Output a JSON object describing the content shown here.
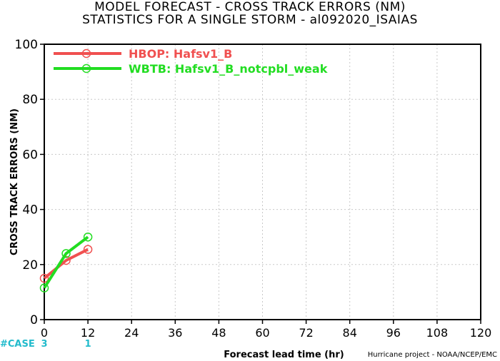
{
  "chart_data": {
    "type": "line",
    "title": "MODEL FORECAST - CROSS TRACK ERRORS (NM)",
    "subtitle": "STATISTICS FOR A SINGLE STORM - al092020_ISAIAS",
    "xlabel": "Forecast lead time (hr)",
    "ylabel": "CROSS TRACK ERRORS (NM)",
    "xlim": [
      0,
      120
    ],
    "ylim": [
      0,
      100
    ],
    "xticks": [
      0,
      12,
      24,
      36,
      48,
      60,
      72,
      84,
      96,
      108,
      120
    ],
    "yticks": [
      0,
      20,
      40,
      60,
      80,
      100
    ],
    "grid": true,
    "legend_position": "top-left",
    "series": [
      {
        "name": "HBOP: Hafsv1_B",
        "color": "#f05050",
        "x": [
          0,
          6,
          12
        ],
        "y": [
          15,
          21.5,
          25.5
        ]
      },
      {
        "name": "WBTB: Hafsv1_B_notcpbl_weak",
        "color": "#22dd22",
        "x": [
          0,
          6,
          12
        ],
        "y": [
          11.5,
          24,
          30
        ]
      }
    ],
    "case_label": "#CASE",
    "cases": [
      {
        "x": 0,
        "count": "3"
      },
      {
        "x": 12,
        "count": "1"
      }
    ],
    "case_color": "#22bbcc"
  },
  "credit": "Hurricane project - NOAA/NCEP/EMC"
}
